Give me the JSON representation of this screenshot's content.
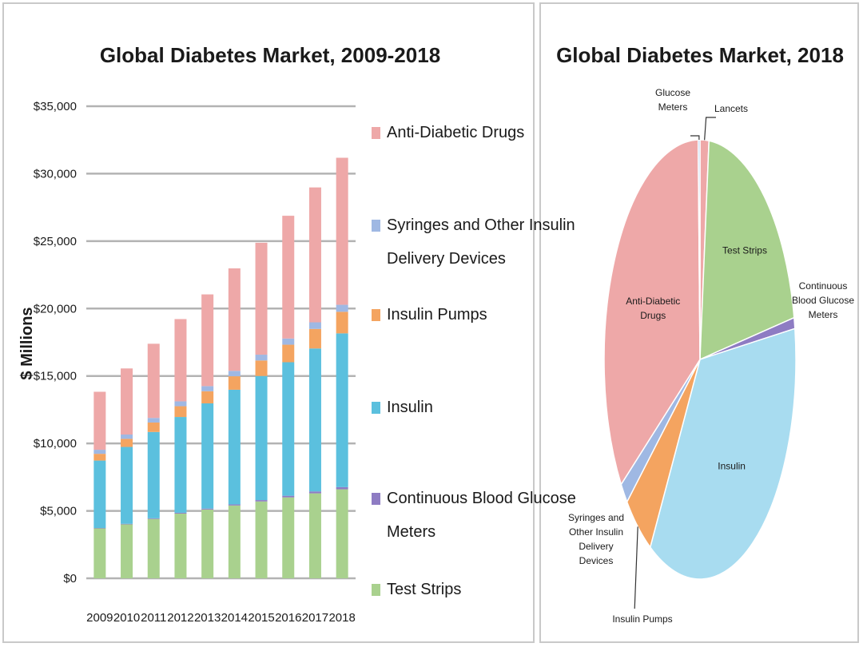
{
  "charts": [
    {
      "title": "Global Diabetes Market, 2009-2018",
      "ylabel": "$ Millions"
    },
    {
      "title": "Global Diabetes Market, 2018"
    }
  ],
  "chart_data": [
    {
      "type": "bar",
      "stacked": true,
      "title": "Global Diabetes Market, 2009-2018",
      "xlabel": "",
      "ylabel": "$ Millions",
      "ylim": [
        0,
        35000
      ],
      "yticks": [
        "$0",
        "$5,000",
        "$10,000",
        "$15,000",
        "$20,000",
        "$25,000",
        "$30,000",
        "$35,000"
      ],
      "grid": true,
      "legend_position": "right",
      "categories": [
        "2009",
        "2010",
        "2011",
        "2012",
        "2013",
        "2014",
        "2015",
        "2016",
        "2017",
        "2018"
      ],
      "series": [
        {
          "name": "Test Strips",
          "color": "#a9d18e",
          "values": [
            3700,
            4000,
            4400,
            4800,
            5100,
            5400,
            5700,
            6000,
            6300,
            6600
          ]
        },
        {
          "name": "Continuous Blood Glucose Meters",
          "color": "#8e7cc3",
          "values": [
            30,
            40,
            50,
            60,
            70,
            80,
            100,
            120,
            140,
            160
          ]
        },
        {
          "name": "Insulin",
          "color": "#5bc0de",
          "values": [
            5000,
            5700,
            6400,
            7100,
            7800,
            8500,
            9200,
            9900,
            10600,
            11400
          ]
        },
        {
          "name": "Insulin Pumps",
          "color": "#f4a460",
          "values": [
            500,
            600,
            700,
            800,
            900,
            1000,
            1150,
            1300,
            1450,
            1600
          ]
        },
        {
          "name": "Syringes and Other Insulin Delivery Devices",
          "color": "#9fb8e3",
          "values": [
            300,
            320,
            340,
            360,
            380,
            400,
            430,
            460,
            490,
            520
          ]
        },
        {
          "name": "Anti-Diabetic Drugs",
          "color": "#eea8a8",
          "values": [
            4300,
            4900,
            5500,
            6100,
            6800,
            7600,
            8300,
            9100,
            10000,
            10900
          ]
        }
      ],
      "legend_order": [
        {
          "lines": [
            "Anti-Diabetic Drugs"
          ],
          "color": "#eea8a8"
        },
        {
          "lines": [
            "Syringes and Other Insulin",
            "Delivery Devices"
          ],
          "color": "#9fb8e3"
        },
        {
          "lines": [
            "Insulin Pumps"
          ],
          "color": "#f4a460"
        },
        {
          "lines": [
            "Insulin"
          ],
          "color": "#5bc0de"
        },
        {
          "lines": [
            "Continuous Blood Glucose",
            "Meters"
          ],
          "color": "#8e7cc3"
        },
        {
          "lines": [
            "Test Strips"
          ],
          "color": "#a9d18e"
        }
      ]
    },
    {
      "type": "pie",
      "title": "Global Diabetes Market, 2018",
      "slices": [
        {
          "label": [
            "Lancets"
          ],
          "value": 1.5,
          "color": "#eea8a8"
        },
        {
          "label": [
            "Test Strips"
          ],
          "value": 20.5,
          "color": "#a9d18e"
        },
        {
          "label": [
            "Continuous",
            "Blood Glucose",
            "Meters"
          ],
          "value": 0.8,
          "color": "#8e7cc3"
        },
        {
          "label": [
            "Insulin"
          ],
          "value": 36.0,
          "color": "#a8dcf0"
        },
        {
          "label": [
            "Insulin Pumps"
          ],
          "value": 5.1,
          "color": "#f4a460"
        },
        {
          "label": [
            "Syringes and",
            "Other Insulin",
            "Delivery",
            "Devices"
          ],
          "value": 1.6,
          "color": "#9fb8e3"
        },
        {
          "label": [
            "Anti-Diabetic",
            "Drugs"
          ],
          "value": 34.4,
          "color": "#eea8a8"
        },
        {
          "label": [
            "Glucose",
            "Meters"
          ],
          "value": 0.3,
          "color": "#9fb8e3"
        }
      ]
    }
  ]
}
